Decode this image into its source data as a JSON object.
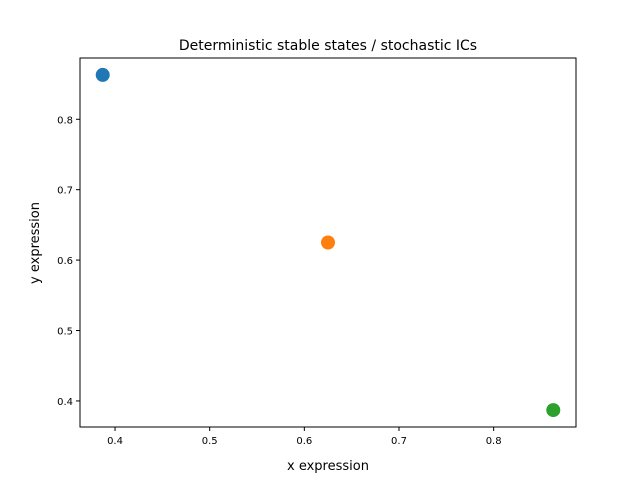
{
  "chart_data": {
    "type": "scatter",
    "title": "Deterministic stable states / stochastic ICs",
    "xlabel": "x expression",
    "ylabel": "y expression",
    "xlim": [
      0.363,
      0.887
    ],
    "ylim": [
      0.363,
      0.887
    ],
    "xticks": [
      0.4,
      0.5,
      0.6,
      0.7,
      0.8
    ],
    "yticks": [
      0.4,
      0.5,
      0.6,
      0.7,
      0.8
    ],
    "xtick_labels": [
      "0.4",
      "0.5",
      "0.6",
      "0.7",
      "0.8"
    ],
    "ytick_labels": [
      "0.4",
      "0.5",
      "0.6",
      "0.7",
      "0.8"
    ],
    "grid": false,
    "points": [
      {
        "x": 0.387,
        "y": 0.863,
        "color": "#1f77b4"
      },
      {
        "x": 0.625,
        "y": 0.625,
        "color": "#ff7f0e"
      },
      {
        "x": 0.863,
        "y": 0.387,
        "color": "#2ca02c"
      }
    ]
  }
}
